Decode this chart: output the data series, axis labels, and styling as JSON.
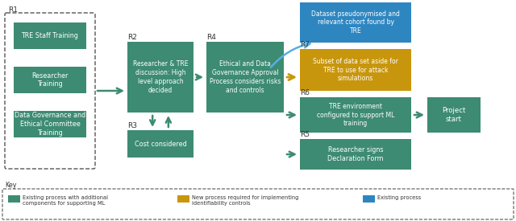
{
  "green": "#3d8b72",
  "gold": "#c8960c",
  "blue": "#2e86c1",
  "bg": "#ffffff",
  "text_white": "#ffffff",
  "r1_boxes": [
    "TRE Staff Training",
    "Researcher\nTraining",
    "Data Governance and\nEthical Committee\nTraining"
  ],
  "r2_box": "Researcher & TRE\ndiscussion: High\nlevel approach\ndecided",
  "r3_box": "Cost considered",
  "r4_box": "Ethical and Data\nGovernance Approval\nProcess considers risks\nand controls",
  "blue_box": "Dataset pseudonymised and\nrelevant cohort found by\nTRE",
  "gold_box": "Subset of data set aside for\nTRE to use for attack\nsimulations",
  "r6_box": "TRE environment\nconfigured to support ML\ntraining",
  "r5_box": "Researcher signs\nDeclaration Form",
  "project_box": "Project\nstart",
  "key_green": "Existing process with additional\ncomponents for supporting ML",
  "key_gold": "New process required for implementing\nidentifiability controls",
  "key_blue": "Existing process"
}
